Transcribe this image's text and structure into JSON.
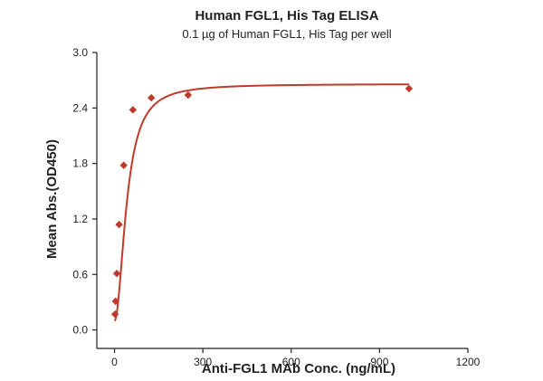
{
  "chart_data": {
    "type": "scatter",
    "title": "Human FGL1, His Tag ELISA",
    "subtitle": "0.1 µg of Human FGL1, His Tag per well",
    "xlabel": "Anti-FGL1 MAb Conc. (ng/mL)",
    "ylabel": "Mean Abs.(OD450)",
    "xlim": [
      -60,
      1200
    ],
    "ylim": [
      -0.2,
      3.0
    ],
    "x_ticks": [
      0,
      300,
      600,
      900,
      1200
    ],
    "y_ticks": [
      0.0,
      0.6,
      1.2,
      1.8,
      2.4,
      3.0
    ],
    "x_tick_labels": [
      "0",
      "300",
      "600",
      "900",
      "1200"
    ],
    "y_tick_labels": [
      "0.0",
      "0.6",
      "1.2",
      "1.8",
      "2.4",
      "3.0"
    ],
    "grid": false,
    "legend": "none",
    "series": [
      {
        "x": [
          1.95,
          3.9,
          7.8,
          15.6,
          31.25,
          62.5,
          125,
          250,
          1000
        ],
        "y": [
          0.17,
          0.31,
          0.61,
          1.14,
          1.78,
          2.38,
          2.51,
          2.54,
          2.61
        ]
      }
    ],
    "fit": {
      "type": "4PL",
      "bottom": 0.1,
      "top": 2.66,
      "ec50": 42,
      "hill": 2.0,
      "x_range": [
        0,
        1000
      ]
    },
    "color": "#c0392b"
  }
}
